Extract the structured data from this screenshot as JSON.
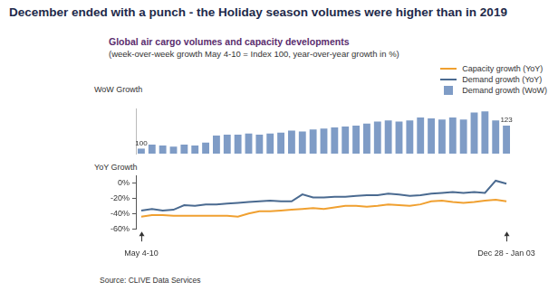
{
  "chart_data": [
    {
      "type": "bar",
      "title": "December ended with a punch - the Holiday season volumes were higher than in 2019",
      "subtitle": "Global air cargo volumes and capacity developments",
      "annotations": [
        "(week-over-week growth May 4-10 = Index 100, year-over-year growth in %)"
      ],
      "source": "Source: CLIVE Data Services",
      "y_label": "WoW Growth",
      "categories": [
        "May 4-10",
        null,
        null,
        null,
        null,
        null,
        null,
        null,
        null,
        null,
        null,
        null,
        null,
        null,
        null,
        null,
        null,
        null,
        null,
        null,
        null,
        null,
        null,
        null,
        null,
        null,
        null,
        null,
        null,
        null,
        null,
        null,
        null,
        null,
        "Dec 28 - Jan 03"
      ],
      "series": [
        {
          "name": "Demand growth (WoW)",
          "color": "#7f9cc6",
          "values": [
            100,
            104,
            103,
            102,
            104,
            103,
            106,
            113,
            114,
            114,
            115,
            114,
            115,
            116,
            118,
            117,
            119,
            120,
            121,
            122,
            123,
            125,
            127,
            128,
            127,
            128,
            131,
            130,
            129,
            131,
            129,
            136,
            137,
            128,
            123
          ],
          "value_labels": [
            "100",
            null,
            null,
            null,
            null,
            null,
            null,
            null,
            null,
            null,
            null,
            null,
            null,
            null,
            null,
            null,
            null,
            null,
            null,
            null,
            null,
            null,
            null,
            null,
            null,
            null,
            null,
            null,
            null,
            null,
            null,
            null,
            null,
            null,
            "123"
          ]
        }
      ],
      "ylim": [
        95,
        140
      ],
      "grid": false,
      "data_labels": true,
      "tick_labels": false,
      "legend": "upper right"
    },
    {
      "type": "line",
      "y_label": "YoY Growth",
      "categories": [
        "May 4-10",
        null,
        null,
        null,
        null,
        null,
        null,
        null,
        null,
        null,
        null,
        null,
        null,
        null,
        null,
        null,
        null,
        null,
        null,
        null,
        null,
        null,
        null,
        null,
        null,
        null,
        null,
        null,
        null,
        null,
        null,
        null,
        null,
        null,
        "Dec 28 - Jan 03"
      ],
      "series": [
        {
          "name": "Capacity growth (YoY)",
          "color": "#f0a030",
          "values": [
            -44,
            -42,
            -42,
            -43,
            -43,
            -43,
            -43,
            -43,
            -43,
            -44,
            -40,
            -37,
            -37,
            -36,
            -35,
            -34,
            -33,
            -34,
            -32,
            -30,
            -30,
            -31,
            -30,
            -28,
            -29,
            -30,
            -28,
            -24,
            -23,
            -25,
            -26,
            -25,
            -23,
            -22,
            -24
          ]
        },
        {
          "name": "Demand growth (YoY)",
          "color": "#4a6a90",
          "values": [
            -36,
            -34,
            -36,
            -35,
            -29,
            -30,
            -28,
            -28,
            -27,
            -26,
            -25,
            -24,
            -23,
            -24,
            -24,
            -15,
            -19,
            -19,
            -18,
            -18,
            -17,
            -16,
            -16,
            -14,
            -15,
            -17,
            -16,
            -14,
            -13,
            -12,
            -13,
            -12,
            -13,
            3,
            -1
          ]
        }
      ],
      "ylim": [
        -60,
        10
      ],
      "yticks": [
        {
          "value": -60,
          "label": "-60%"
        },
        {
          "value": -40,
          "label": "-40%"
        },
        {
          "value": -20,
          "label": "-20%"
        },
        {
          "value": 0,
          "label": "0%"
        }
      ],
      "grid": false,
      "legend": "upper right"
    }
  ]
}
